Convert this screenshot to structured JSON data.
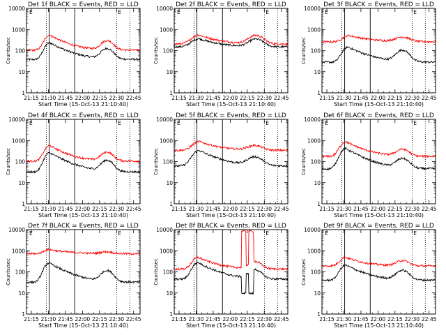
{
  "chart_data": {
    "type": "line",
    "xlabel": "Start Time (15-Oct-13 21:10:40)",
    "ylabel": "Counts/sec",
    "yscale": "log",
    "ylim": [
      1,
      10000
    ],
    "y_ticks": [
      "1",
      "10",
      "100",
      "1000",
      "10000"
    ],
    "x_ticks": [
      "21:15",
      "21:30",
      "21:45",
      "22:00",
      "22:15",
      "22:30",
      "22:45"
    ],
    "xlim_minutes": [
      0,
      100
    ],
    "legend_corner_mark": "E",
    "solid_vlines_minutes": [
      20,
      42.5
    ],
    "dotted_vlines_minutes": [
      0,
      17.5,
      79.5,
      91
    ],
    "colors": {
      "events": "#000000",
      "lld": "#ff0000"
    },
    "panels": [
      {
        "title": "Det 1f BLACK = Events, RED = LLD",
        "series": [
          {
            "color": "#000000",
            "base": 38,
            "hump1": {
              "t": 20.5,
              "amp": 200,
              "w": 5.5,
              "decay": 13
            },
            "hump2": {
              "t": 71,
              "amp": 85,
              "w": 6.5
            },
            "drop": null
          },
          {
            "color": "#ff0000",
            "base": 105,
            "hump1": {
              "t": 20.5,
              "amp": 440,
              "w": 5.5,
              "decay": 12
            },
            "hump2": {
              "t": 71,
              "amp": 190,
              "w": 6.5
            },
            "drop": null
          }
        ]
      },
      {
        "title": "Det 2f BLACK = Events, RED = LLD",
        "series": [
          {
            "color": "#000000",
            "base": 150,
            "hump1": {
              "t": 22,
              "amp": 220,
              "w": 8,
              "decay": 14
            },
            "hump2": {
              "t": 72,
              "amp": 200,
              "w": 8
            },
            "drop": null
          },
          {
            "color": "#ff0000",
            "base": 205,
            "hump1": {
              "t": 22,
              "amp": 350,
              "w": 8,
              "decay": 14
            },
            "hump2": {
              "t": 72,
              "amp": 320,
              "w": 8
            },
            "drop": null
          }
        ]
      },
      {
        "title": "Det 3f BLACK = Events, RED = LLD",
        "series": [
          {
            "color": "#000000",
            "base": 28,
            "hump1": {
              "t": 23,
              "amp": 120,
              "w": 6,
              "decay": 14
            },
            "hump2": {
              "t": 71,
              "amp": 75,
              "w": 7
            },
            "drop": null
          },
          {
            "color": "#ff0000",
            "base": 260,
            "hump1": {
              "t": 24,
              "amp": 260,
              "w": 7,
              "decay": 16
            },
            "hump2": {
              "t": 71,
              "amp": 170,
              "w": 8
            },
            "drop": null
          }
        ]
      },
      {
        "title": "Det 4f BLACK = Events, RED = LLD",
        "series": [
          {
            "color": "#000000",
            "base": 32,
            "hump1": {
              "t": 20.5,
              "amp": 230,
              "w": 5.5,
              "decay": 13
            },
            "hump2": {
              "t": 71,
              "amp": 80,
              "w": 6.5
            },
            "drop": null
          },
          {
            "color": "#ff0000",
            "base": 105,
            "hump1": {
              "t": 20.5,
              "amp": 470,
              "w": 5.5,
              "decay": 12
            },
            "hump2": {
              "t": 71,
              "amp": 170,
              "w": 6.5
            },
            "drop": null
          }
        ]
      },
      {
        "title": "Det 5f BLACK = Events, RED = LLD",
        "series": [
          {
            "color": "#000000",
            "base": 62,
            "hump1": {
              "t": 22,
              "amp": 270,
              "w": 7,
              "decay": 14
            },
            "hump2": {
              "t": 71,
              "amp": 100,
              "w": 8
            },
            "drop": null
          },
          {
            "color": "#ff0000",
            "base": 340,
            "hump1": {
              "t": 22,
              "amp": 560,
              "w": 7,
              "decay": 14
            },
            "hump2": {
              "t": 71,
              "amp": 230,
              "w": 8
            },
            "drop": null
          }
        ]
      },
      {
        "title": "Det 6f BLACK = Events, RED = LLD",
        "series": [
          {
            "color": "#000000",
            "base": 45,
            "hump1": {
              "t": 21,
              "amp": 370,
              "w": 6,
              "decay": 13
            },
            "hump2": {
              "t": 71,
              "amp": 90,
              "w": 7
            },
            "drop": null
          },
          {
            "color": "#ff0000",
            "base": 175,
            "hump1": {
              "t": 21,
              "amp": 700,
              "w": 6,
              "decay": 13
            },
            "hump2": {
              "t": 71,
              "amp": 200,
              "w": 7
            },
            "drop": null
          }
        ]
      },
      {
        "title": "Det 7f BLACK = Events, RED = LLD",
        "series": [
          {
            "color": "#000000",
            "base": 32,
            "hump1": {
              "t": 20,
              "amp": 230,
              "w": 5.5,
              "decay": 13
            },
            "hump2": {
              "t": 71,
              "amp": 80,
              "w": 6.5
            },
            "drop": null
          },
          {
            "color": "#ff0000",
            "base": 720,
            "hump1": {
              "t": 20,
              "amp": 420,
              "w": 6,
              "decay": 16
            },
            "hump2": {
              "t": 71,
              "amp": 160,
              "w": 7
            },
            "drop": null
          }
        ]
      },
      {
        "title": "Det 8f BLACK = Events, RED = LLD",
        "series": [
          {
            "color": "#000000",
            "base": 45,
            "hump1": {
              "t": 21,
              "amp": 230,
              "w": 6,
              "decay": 13
            },
            "hump2": {
              "t": 71,
              "amp": 80,
              "w": 7
            },
            "drop": {
              "t0": 59,
              "t1": 70,
              "value": 9.5
            }
          },
          {
            "color": "#ff0000",
            "base": 135,
            "hump1": {
              "t": 21,
              "amp": 360,
              "w": 6,
              "decay": 13
            },
            "hump2": {
              "t": 71,
              "amp": 170,
              "w": 7
            },
            "drop": {
              "t0": 59,
              "t1": 70,
              "value": 8500
            }
          }
        ]
      },
      {
        "title": "Det 9f BLACK = Events, RED = LLD",
        "series": [
          {
            "color": "#000000",
            "base": 40,
            "hump1": {
              "t": 21,
              "amp": 170,
              "w": 6,
              "decay": 13
            },
            "hump2": {
              "t": 71,
              "amp": 75,
              "w": 7
            },
            "drop": null
          },
          {
            "color": "#ff0000",
            "base": 190,
            "hump1": {
              "t": 21,
              "amp": 300,
              "w": 6,
              "decay": 13
            },
            "hump2": {
              "t": 71,
              "amp": 150,
              "w": 7
            },
            "drop": null
          }
        ]
      }
    ]
  }
}
